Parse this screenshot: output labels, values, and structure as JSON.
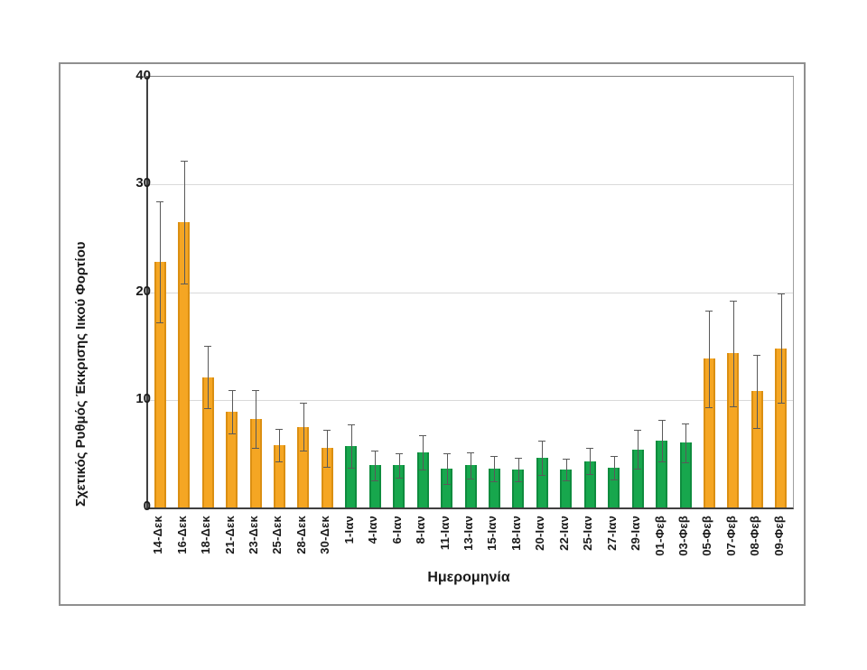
{
  "chart_data": {
    "type": "bar",
    "title": "",
    "xlabel": "Ημερομηνία",
    "ylabel": "Σχετικός Ρυθμός Έκκρισης Ιικού Φορτίου",
    "ylim": [
      0,
      40
    ],
    "yticks": [
      0,
      10,
      20,
      30,
      40
    ],
    "grid": "horizontal",
    "legend": "none",
    "categories": [
      "14-Δεκ",
      "16-Δεκ",
      "18-Δεκ",
      "21-Δεκ",
      "23-Δεκ",
      "25-Δεκ",
      "28-Δεκ",
      "30-Δεκ",
      "1-Ιαν",
      "4-Ιαν",
      "6-Ιαν",
      "8-Ιαν",
      "11-Ιαν",
      "13-Ιαν",
      "15-Ιαν",
      "18-Ιαν",
      "20-Ιαν",
      "22-Ιαν",
      "25-Ιαν",
      "27-Ιαν",
      "29-Ιαν",
      "01-Φεβ",
      "03-Φεβ",
      "05-Φεβ",
      "07-Φεβ",
      "08-Φεβ",
      "09-Φεβ"
    ],
    "values": [
      22.8,
      26.5,
      12.1,
      8.9,
      8.2,
      5.8,
      7.5,
      5.5,
      5.7,
      3.9,
      3.9,
      5.1,
      3.6,
      3.9,
      3.6,
      3.5,
      4.6,
      3.5,
      4.3,
      3.7,
      5.4,
      6.2,
      6.0,
      13.8,
      14.3,
      10.8,
      14.8
    ],
    "errors": [
      5.6,
      5.7,
      2.9,
      2.0,
      2.7,
      1.5,
      2.2,
      1.7,
      2.0,
      1.4,
      1.1,
      1.6,
      1.4,
      1.2,
      1.2,
      1.1,
      1.6,
      1.0,
      1.2,
      1.1,
      1.8,
      1.9,
      1.8,
      4.5,
      4.9,
      3.4,
      5.1
    ],
    "bar_groups": [
      "orange",
      "orange",
      "orange",
      "orange",
      "orange",
      "orange",
      "orange",
      "orange",
      "green",
      "green",
      "green",
      "green",
      "green",
      "green",
      "green",
      "green",
      "green",
      "green",
      "green",
      "green",
      "green",
      "green",
      "green",
      "orange",
      "orange",
      "orange",
      "orange"
    ],
    "colors": {
      "orange": "#F5A623",
      "orange_edge": "#DB8F12",
      "green": "#17A74D",
      "green_edge": "#0E8C3E",
      "error_bar": "#595959",
      "gridline": "#d9d9d9",
      "axis": "#404040",
      "frame": "#8f8f8f",
      "text": "#1a1a1a"
    }
  }
}
